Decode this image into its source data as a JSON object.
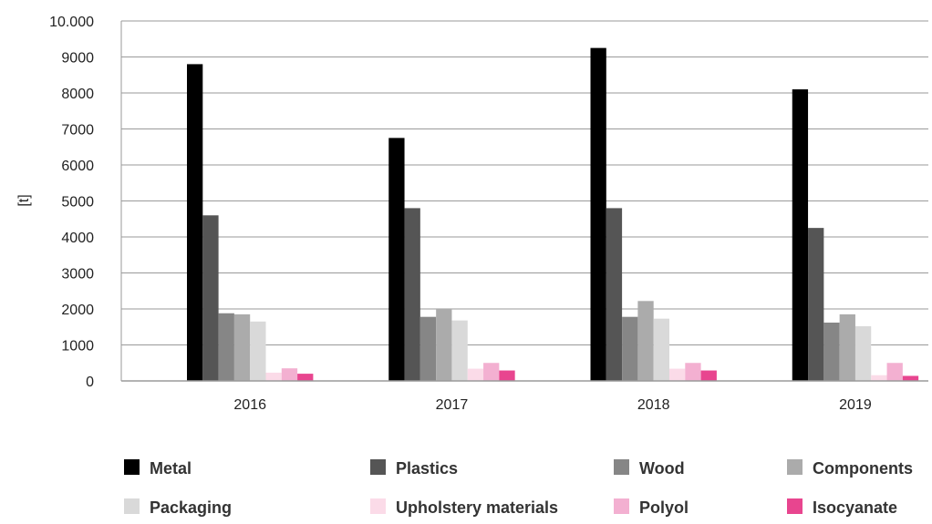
{
  "chart_data": {
    "type": "bar",
    "title": "",
    "xlabel": "",
    "ylabel": "[t]",
    "ylim": [
      0,
      10000
    ],
    "y_ticks": [
      0,
      1000,
      2000,
      3000,
      4000,
      5000,
      6000,
      7000,
      8000,
      9000,
      10000
    ],
    "y_tick_labels": [
      "0",
      "1000",
      "2000",
      "3000",
      "4000",
      "5000",
      "6000",
      "7000",
      "8000",
      "9000",
      "10.000"
    ],
    "categories": [
      "2016",
      "2017",
      "2018",
      "2019"
    ],
    "grid": "horizontal",
    "legend_position": "bottom",
    "series": [
      {
        "name": "Metal",
        "color": "#000000",
        "values": [
          8800,
          6750,
          9250,
          8100
        ]
      },
      {
        "name": "Plastics",
        "color": "#555555",
        "values": [
          4600,
          4800,
          4800,
          4250
        ]
      },
      {
        "name": "Wood",
        "color": "#868686",
        "values": [
          1880,
          1780,
          1780,
          1620
        ]
      },
      {
        "name": "Components",
        "color": "#ababab",
        "values": [
          1850,
          2000,
          2220,
          1850
        ]
      },
      {
        "name": "Packaging",
        "color": "#d9d9d9",
        "values": [
          1650,
          1680,
          1730,
          1520
        ]
      },
      {
        "name": "Upholstery materials",
        "color": "#fbdbe8",
        "values": [
          230,
          340,
          340,
          160
        ]
      },
      {
        "name": "Polyol",
        "color": "#f3b0d1",
        "values": [
          350,
          500,
          500,
          500
        ]
      },
      {
        "name": "Isocyanate",
        "color": "#e8458f",
        "values": [
          200,
          290,
          290,
          140
        ]
      }
    ]
  }
}
